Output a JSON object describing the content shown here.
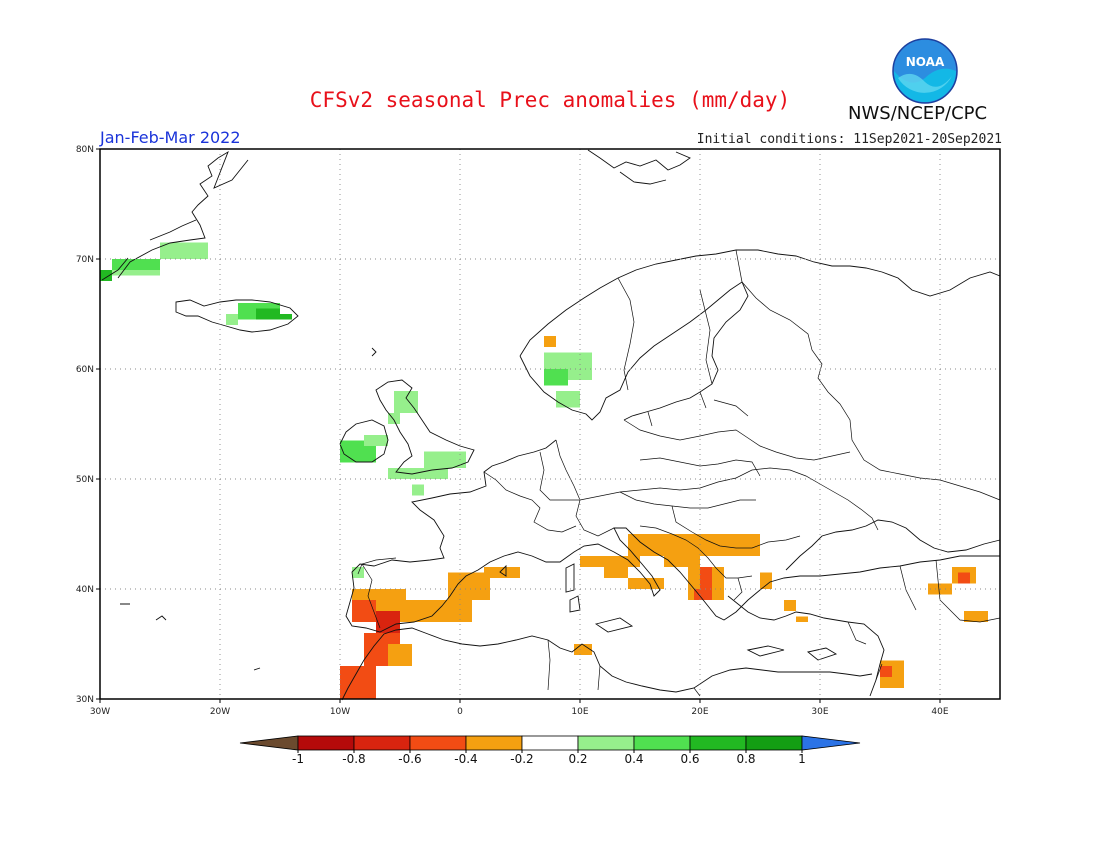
{
  "header": {
    "title": "CFSv2 seasonal Prec anomalies (mm/day)",
    "agency": "NWS/NCEP/CPC",
    "logo_text": "NOAA",
    "period": "Jan-Feb-Mar 2022",
    "initial_conditions": "Initial conditions: 11Sep2021-20Sep2021"
  },
  "map": {
    "lon_range": [
      -30,
      45
    ],
    "lat_range": [
      30,
      80
    ],
    "x_ticks": [
      {
        "lon": -30,
        "label": "30W"
      },
      {
        "lon": -20,
        "label": "20W"
      },
      {
        "lon": -10,
        "label": "10W"
      },
      {
        "lon": 0,
        "label": "0"
      },
      {
        "lon": 10,
        "label": "10E"
      },
      {
        "lon": 20,
        "label": "20E"
      },
      {
        "lon": 30,
        "label": "30E"
      },
      {
        "lon": 40,
        "label": "40E"
      }
    ],
    "y_ticks": [
      {
        "lat": 30,
        "label": "30N"
      },
      {
        "lat": 40,
        "label": "40N"
      },
      {
        "lat": 50,
        "label": "50N"
      },
      {
        "lat": 60,
        "label": "60N"
      },
      {
        "lat": 70,
        "label": "70N"
      },
      {
        "lat": 80,
        "label": "80N"
      }
    ],
    "grid": true
  },
  "colorbar": {
    "labels": [
      "-1",
      "-0.8",
      "-0.6",
      "-0.4",
      "-0.2",
      "0.2",
      "0.4",
      "0.6",
      "0.8",
      "1"
    ],
    "colors": [
      "#6b4a2e",
      "#b50a0a",
      "#d9240f",
      "#f24c14",
      "#f5a011",
      "#ffffff",
      "#96ef8c",
      "#50e050",
      "#22b922",
      "#139e13",
      "#2b73e6"
    ]
  },
  "chart_data": {
    "type": "heatmap",
    "title": "CFSv2 seasonal Prec anomalies (mm/day)",
    "units": "mm/day",
    "region": {
      "lon": [
        -30,
        45
      ],
      "lat": [
        30,
        80
      ]
    },
    "levels": [
      -1,
      -0.8,
      -0.6,
      -0.4,
      -0.2,
      0.2,
      0.4,
      0.6,
      0.8,
      1
    ],
    "anomaly_cells": [
      {
        "lon": [
          -30,
          -29
        ],
        "lat": [
          68,
          69
        ],
        "value": 0.7
      },
      {
        "lon": [
          -29,
          -25
        ],
        "lat": [
          69,
          70
        ],
        "value": 0.4
      },
      {
        "lon": [
          -29,
          -25
        ],
        "lat": [
          68.5,
          69
        ],
        "value": 0.3
      },
      {
        "lon": [
          -25,
          -21
        ],
        "lat": [
          70,
          71.5
        ],
        "value": 0.3
      },
      {
        "lon": [
          -18.5,
          -15
        ],
        "lat": [
          64.5,
          66
        ],
        "value": 0.4
      },
      {
        "lon": [
          -17,
          -15
        ],
        "lat": [
          64.5,
          65.5
        ],
        "value": 0.6
      },
      {
        "lon": [
          -15.5,
          -14
        ],
        "lat": [
          64.5,
          65
        ],
        "value": 0.7
      },
      {
        "lon": [
          -19.5,
          -18.5
        ],
        "lat": [
          64,
          65
        ],
        "value": 0.3
      },
      {
        "lon": [
          -10,
          -7
        ],
        "lat": [
          51.5,
          53.5
        ],
        "value": 0.4
      },
      {
        "lon": [
          -8,
          -6
        ],
        "lat": [
          53,
          54
        ],
        "value": 0.3
      },
      {
        "lon": [
          -5.5,
          -3.5
        ],
        "lat": [
          56,
          58
        ],
        "value": 0.3
      },
      {
        "lon": [
          -6,
          -5
        ],
        "lat": [
          55,
          56
        ],
        "value": 0.3
      },
      {
        "lon": [
          -6,
          -1
        ],
        "lat": [
          50,
          51
        ],
        "value": 0.3
      },
      {
        "lon": [
          -3,
          0.5
        ],
        "lat": [
          51,
          52.5
        ],
        "value": 0.3
      },
      {
        "lon": [
          -4,
          -3
        ],
        "lat": [
          48.5,
          49.5
        ],
        "value": 0.3
      },
      {
        "lon": [
          7,
          11
        ],
        "lat": [
          59,
          61.5
        ],
        "value": 0.3
      },
      {
        "lon": [
          7,
          9
        ],
        "lat": [
          58.5,
          60
        ],
        "value": 0.4
      },
      {
        "lon": [
          8,
          10
        ],
        "lat": [
          56.5,
          58
        ],
        "value": 0.3
      },
      {
        "lon": [
          7,
          8
        ],
        "lat": [
          62,
          63
        ],
        "value": -0.3
      },
      {
        "lon": [
          -9,
          -8
        ],
        "lat": [
          41,
          42
        ],
        "value": 0.3
      },
      {
        "lon": [
          -9,
          -4.5
        ],
        "lat": [
          38,
          40
        ],
        "value": -0.3
      },
      {
        "lon": [
          -9,
          -7
        ],
        "lat": [
          37,
          39
        ],
        "value": -0.5
      },
      {
        "lon": [
          -7,
          -5
        ],
        "lat": [
          36,
          38
        ],
        "value": -0.7
      },
      {
        "lon": [
          -5,
          1
        ],
        "lat": [
          37,
          39
        ],
        "value": -0.3
      },
      {
        "lon": [
          -1,
          2.5
        ],
        "lat": [
          39,
          41.5
        ],
        "value": -0.3
      },
      {
        "lon": [
          2,
          5
        ],
        "lat": [
          41,
          42
        ],
        "value": -0.3
      },
      {
        "lon": [
          -8,
          -5
        ],
        "lat": [
          33,
          36
        ],
        "value": -0.5
      },
      {
        "lon": [
          -10,
          -7
        ],
        "lat": [
          30,
          33
        ],
        "value": -0.6
      },
      {
        "lon": [
          -6,
          -4
        ],
        "lat": [
          33,
          35
        ],
        "value": -0.3
      },
      {
        "lon": [
          10,
          15
        ],
        "lat": [
          42,
          43
        ],
        "value": -0.3
      },
      {
        "lon": [
          12,
          14
        ],
        "lat": [
          41,
          42
        ],
        "value": -0.3
      },
      {
        "lon": [
          14,
          17
        ],
        "lat": [
          40,
          41
        ],
        "value": -0.3
      },
      {
        "lon": [
          14,
          20
        ],
        "lat": [
          43,
          45
        ],
        "value": -0.3
      },
      {
        "lon": [
          17,
          20
        ],
        "lat": [
          42,
          43
        ],
        "value": -0.3
      },
      {
        "lon": [
          19,
          22
        ],
        "lat": [
          39,
          42
        ],
        "value": -0.4
      },
      {
        "lon": [
          20,
          21
        ],
        "lat": [
          40,
          42
        ],
        "value": -0.6
      },
      {
        "lon": [
          19.5,
          21
        ],
        "lat": [
          39,
          40
        ],
        "value": -0.5
      },
      {
        "lon": [
          20,
          25
        ],
        "lat": [
          43,
          45
        ],
        "value": -0.3
      },
      {
        "lon": [
          25,
          26
        ],
        "lat": [
          40,
          41.5
        ],
        "value": -0.3
      },
      {
        "lon": [
          27,
          28
        ],
        "lat": [
          38,
          39
        ],
        "value": -0.3
      },
      {
        "lon": [
          9.5,
          11
        ],
        "lat": [
          34,
          35
        ],
        "value": -0.3
      },
      {
        "lon": [
          28,
          29
        ],
        "lat": [
          37,
          37.5
        ],
        "value": -0.3
      },
      {
        "lon": [
          35,
          37
        ],
        "lat": [
          31,
          33.5
        ],
        "value": -0.4
      },
      {
        "lon": [
          35,
          36
        ],
        "lat": [
          32,
          33
        ],
        "value": -0.5
      },
      {
        "lon": [
          41,
          43
        ],
        "lat": [
          40.5,
          42
        ],
        "value": -0.4
      },
      {
        "lon": [
          41.5,
          42.5
        ],
        "lat": [
          40.5,
          41.5
        ],
        "value": -0.6
      },
      {
        "lon": [
          39,
          41
        ],
        "lat": [
          39.5,
          40.5
        ],
        "value": -0.3
      },
      {
        "lon": [
          42,
          44
        ],
        "lat": [
          37,
          38
        ],
        "value": -0.3
      }
    ]
  }
}
